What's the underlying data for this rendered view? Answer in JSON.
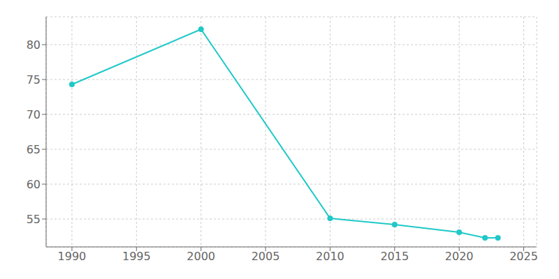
{
  "chart_data": {
    "type": "line",
    "x": [
      1990,
      2000,
      2010,
      2015,
      2020,
      2022,
      2023
    ],
    "values": [
      74.3,
      82.2,
      55.1,
      54.2,
      53.1,
      52.3,
      52.3
    ],
    "color": "#20c8c8",
    "marker": "circle",
    "xlim": [
      1988,
      2026
    ],
    "ylim": [
      51,
      84
    ],
    "xticks": [
      1990,
      1995,
      2000,
      2005,
      2010,
      2015,
      2020,
      2025
    ],
    "yticks": [
      55,
      60,
      65,
      70,
      75,
      80
    ],
    "grid": true
  }
}
